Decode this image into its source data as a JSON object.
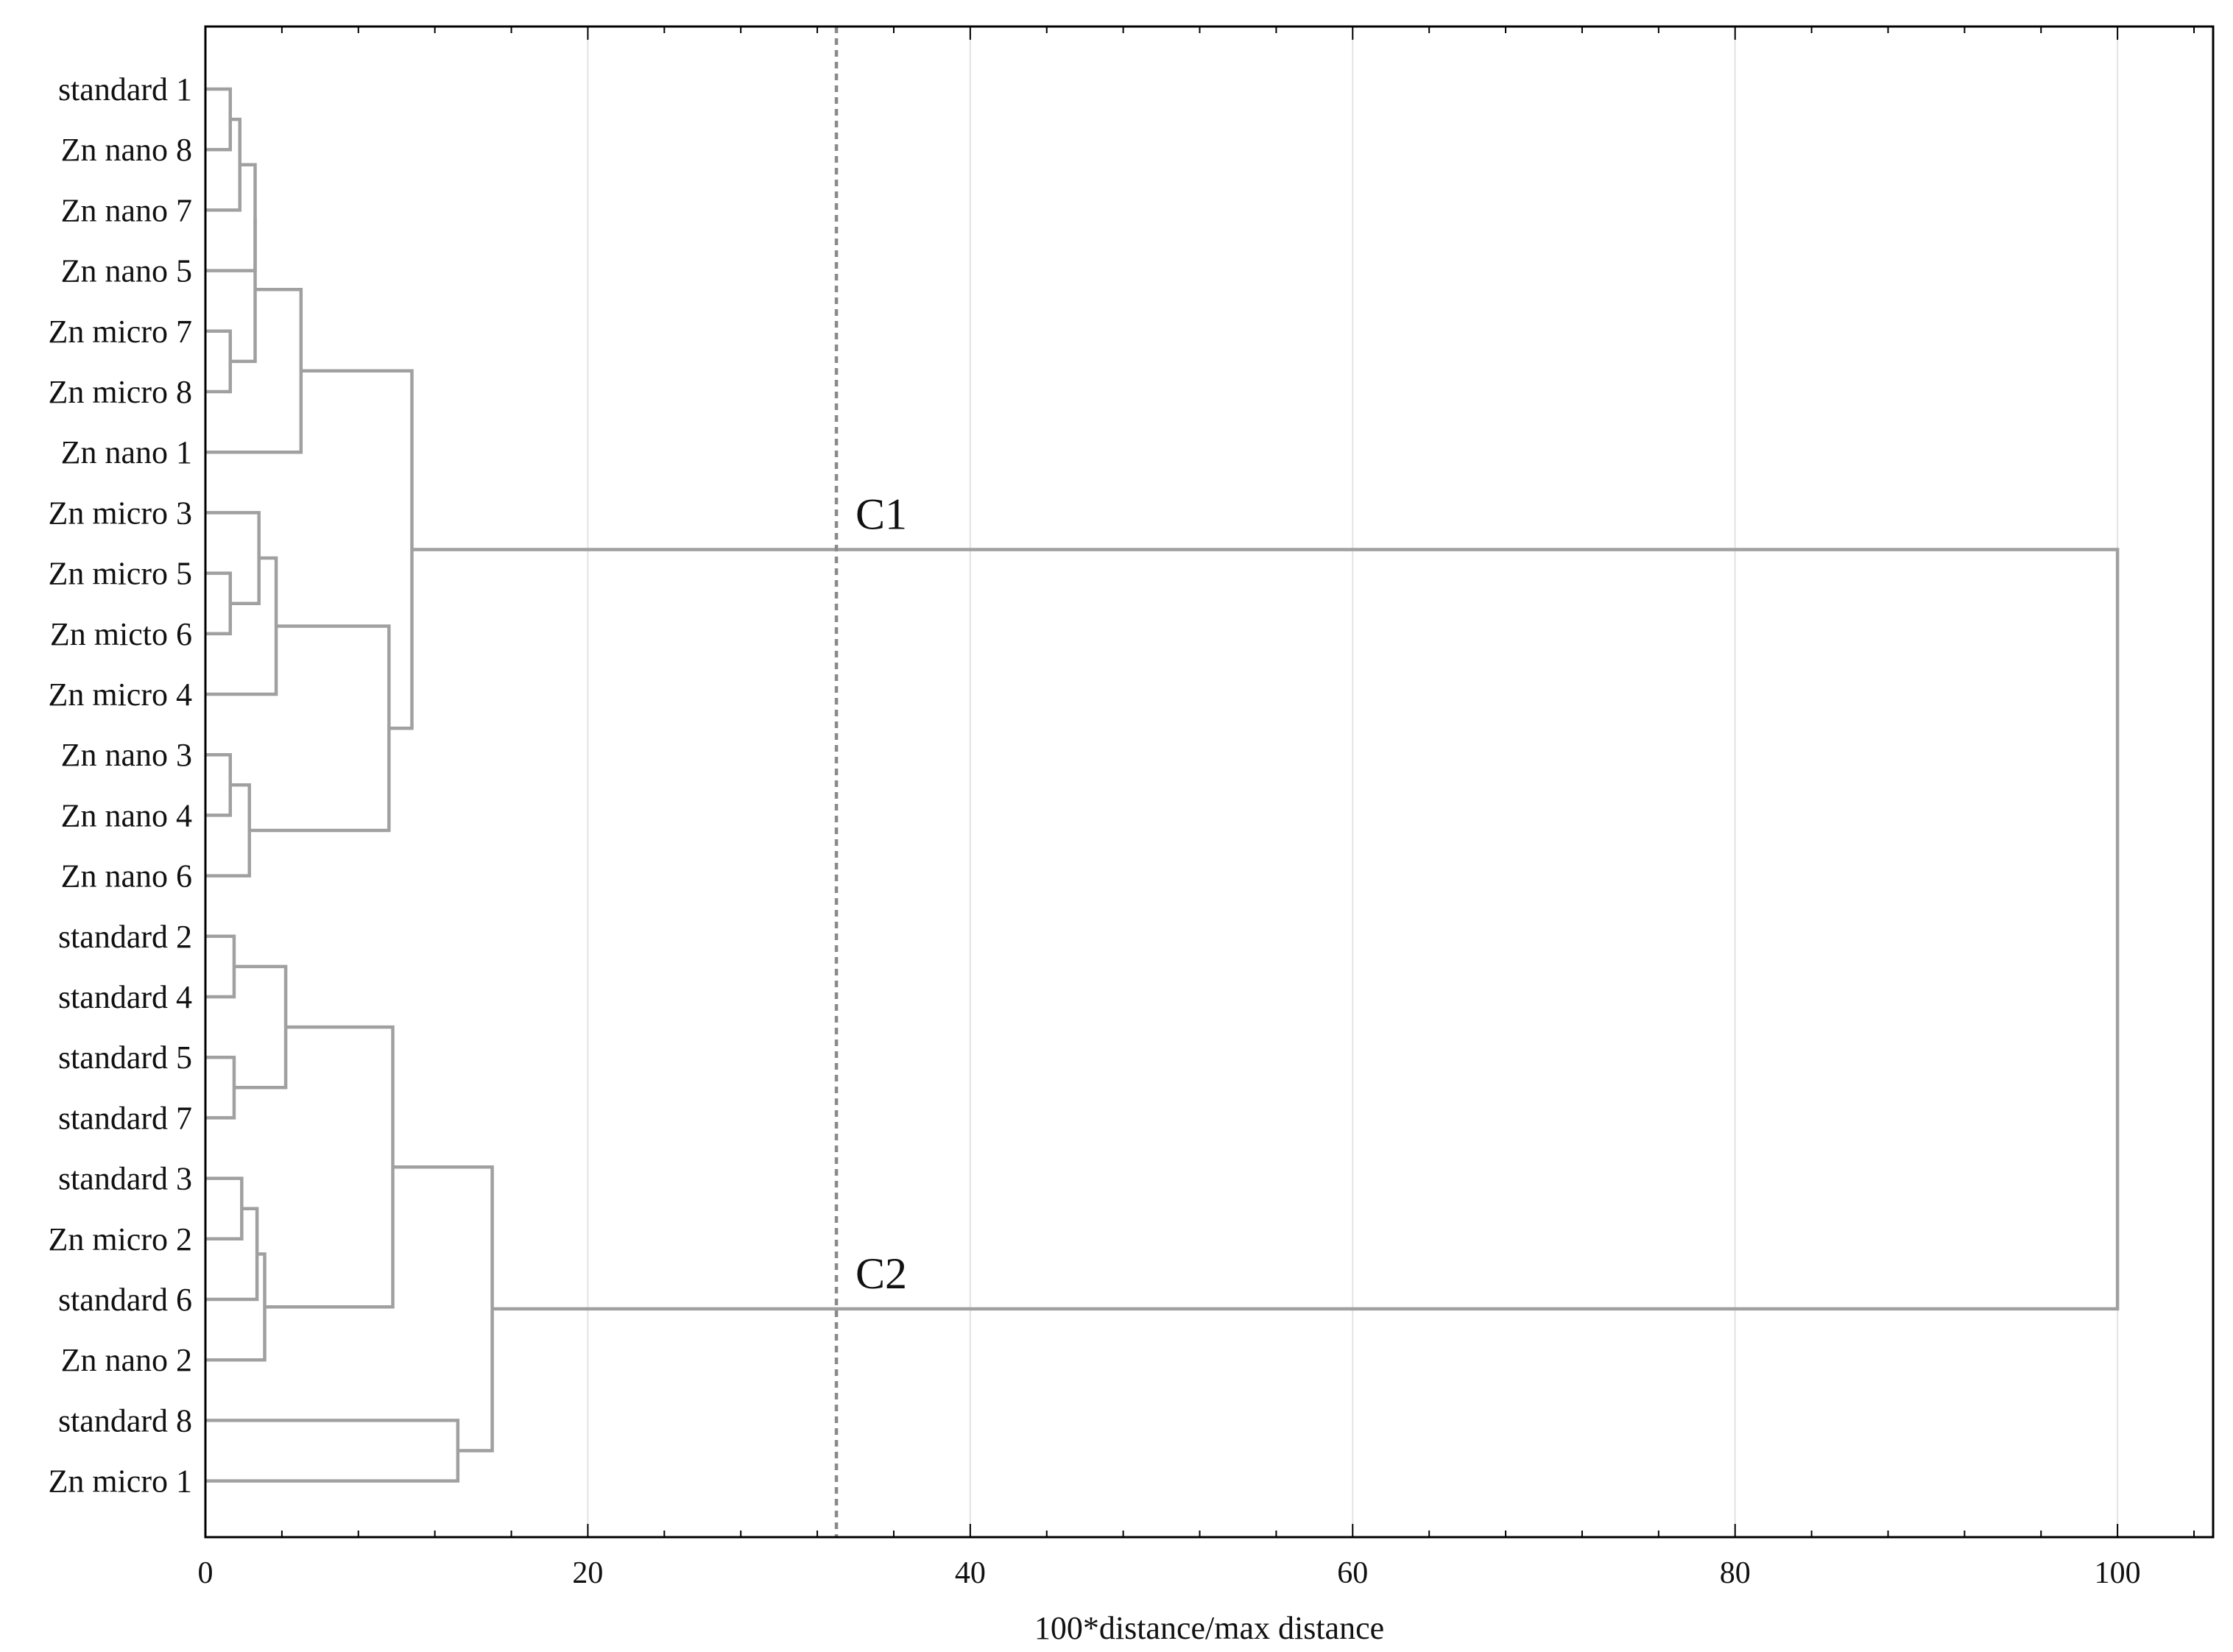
{
  "chart_data": {
    "type": "dendrogram",
    "orientation": "horizontal",
    "xlabel": "100*distance/max distance",
    "xlim": [
      0,
      105
    ],
    "x_ticks": [
      0,
      20,
      40,
      60,
      80,
      100
    ],
    "x_tick_labels": [
      "0",
      "20",
      "40",
      "60",
      "80",
      "100"
    ],
    "minor_tick_step": 4,
    "grid": "vertical",
    "leaves": [
      "standard 1",
      "Zn nano 8",
      "Zn nano 7",
      "Zn nano 5",
      "Zn micro 7",
      "Zn micro 8",
      "Zn nano 1",
      "Zn micro 3",
      "Zn micro 5",
      "Zn micto 6",
      "Zn micro 4",
      "Zn nano 3",
      "Zn nano 4",
      "Zn nano 6",
      "standard 2",
      "standard 4",
      "standard 5",
      "standard 7",
      "standard 3",
      "Zn micro 2",
      "standard 6",
      "Zn nano 2",
      "standard 8",
      "Zn micro 1"
    ],
    "merges": [
      {
        "a": 0,
        "b": 1,
        "height": 1.3
      },
      {
        "a": 24,
        "b": 2,
        "height": 1.8
      },
      {
        "a": 25,
        "b": 3,
        "height": 2.6
      },
      {
        "a": 4,
        "b": 5,
        "height": 1.3
      },
      {
        "a": 26,
        "b": 27,
        "height": 2.6
      },
      {
        "a": 28,
        "b": 6,
        "height": 5.0
      },
      {
        "a": 8,
        "b": 9,
        "height": 1.3
      },
      {
        "a": 7,
        "b": 30,
        "height": 2.8
      },
      {
        "a": 31,
        "b": 10,
        "height": 3.7
      },
      {
        "a": 11,
        "b": 12,
        "height": 1.3
      },
      {
        "a": 33,
        "b": 13,
        "height": 2.3
      },
      {
        "a": 32,
        "b": 34,
        "height": 9.6
      },
      {
        "a": 29,
        "b": 35,
        "height": 10.8
      },
      {
        "a": 14,
        "b": 15,
        "height": 1.5
      },
      {
        "a": 16,
        "b": 17,
        "height": 1.5
      },
      {
        "a": 37,
        "b": 38,
        "height": 4.2
      },
      {
        "a": 18,
        "b": 19,
        "height": 1.9
      },
      {
        "a": 40,
        "b": 20,
        "height": 2.7
      },
      {
        "a": 41,
        "b": 21,
        "height": 3.1
      },
      {
        "a": 39,
        "b": 42,
        "height": 9.8
      },
      {
        "a": 22,
        "b": 23,
        "height": 13.2
      },
      {
        "a": 43,
        "b": 44,
        "height": 15.0
      },
      {
        "a": 36,
        "b": 45,
        "height": 100.0
      }
    ],
    "cut_line": {
      "x": 33.0,
      "style": "dashed"
    },
    "annotations": [
      {
        "text": "C1",
        "x": 34.0,
        "cluster_node": 36
      },
      {
        "text": "C2",
        "x": 34.0,
        "cluster_node": 45
      }
    ],
    "colors": {
      "link": "#a0a0a0",
      "cut_line": "#8a8a8a",
      "grid": "#e3e3e3",
      "axis": "#000000"
    }
  }
}
